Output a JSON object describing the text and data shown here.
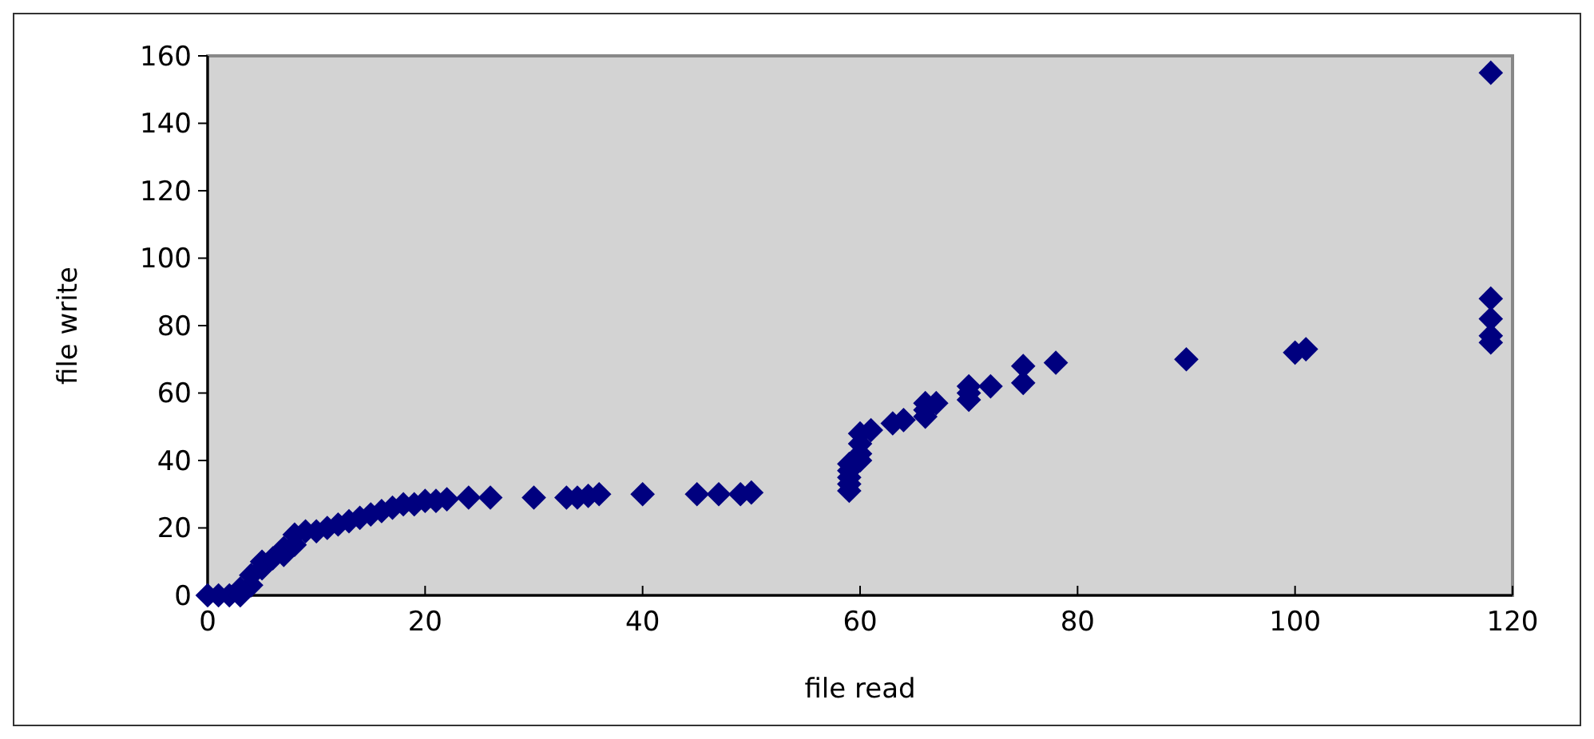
{
  "chart_data": {
    "type": "scatter",
    "xlabel": "file read",
    "ylabel": "file write",
    "marker": "diamond",
    "grid": false,
    "xlim": [
      0,
      120
    ],
    "xticks": [
      0,
      20,
      40,
      60,
      80,
      100,
      120
    ],
    "ylim": [
      0,
      160
    ],
    "yticks": [
      0,
      20,
      40,
      60,
      80,
      100,
      120,
      140,
      160
    ],
    "series": [
      {
        "color": "#00007f",
        "x": [
          0,
          1,
          2,
          3,
          3,
          4,
          4,
          5,
          5,
          6,
          7,
          7,
          8,
          8,
          9,
          10,
          11,
          12,
          13,
          14,
          15,
          16,
          17,
          18,
          19,
          20,
          21,
          22,
          24,
          26,
          30,
          33,
          34,
          35,
          36,
          40,
          45,
          47,
          49,
          50,
          59,
          59,
          59,
          59,
          59,
          60,
          60,
          60,
          60,
          61,
          63,
          64,
          66,
          66,
          66,
          67,
          70,
          70,
          70,
          72,
          75,
          75,
          78,
          90,
          100,
          101,
          118,
          118,
          118,
          118,
          118
        ],
        "values": [
          0,
          0,
          0,
          0,
          2,
          3,
          6,
          8,
          10,
          11,
          12,
          14,
          15,
          18,
          19,
          19,
          20,
          21,
          22,
          23,
          24,
          25,
          26,
          27,
          27,
          28,
          28,
          28.5,
          29,
          29,
          29,
          29,
          29,
          29.5,
          30,
          30,
          30,
          30,
          30,
          30.5,
          31,
          33,
          35,
          37,
          39,
          40,
          42,
          45,
          48,
          49,
          51,
          52,
          53,
          55,
          57,
          57,
          58,
          60,
          62,
          62,
          63,
          68,
          69,
          70,
          72,
          73,
          75,
          77,
          82,
          88,
          155
        ]
      }
    ]
  }
}
